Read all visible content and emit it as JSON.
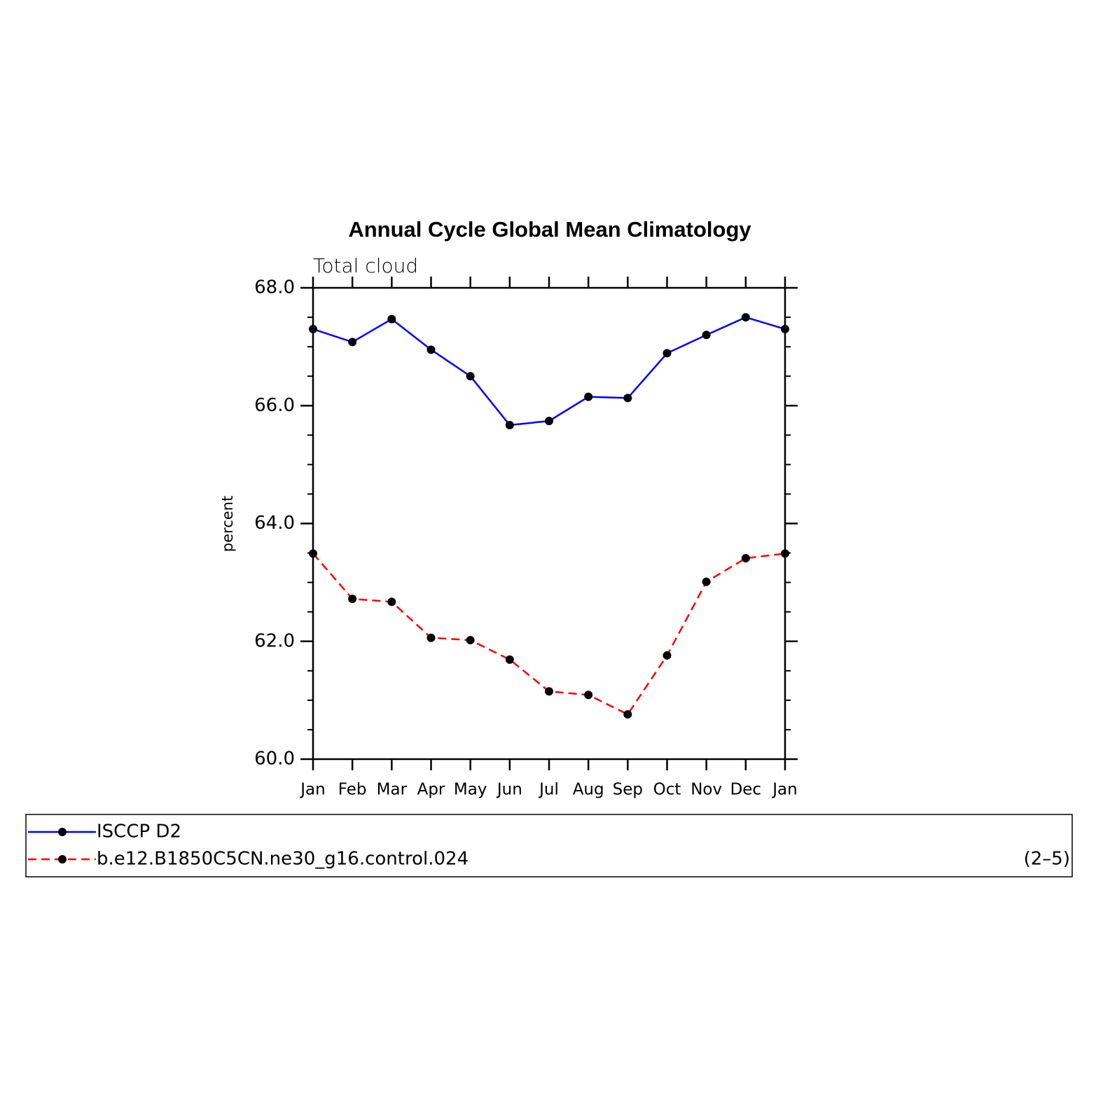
{
  "chart_data": {
    "type": "line",
    "title": "Annual Cycle Global Mean Climatology",
    "subtitle": "Total cloud",
    "y_label": "percent",
    "categories": [
      "Jan",
      "Feb",
      "Mar",
      "Apr",
      "May",
      "Jun",
      "Jul",
      "Aug",
      "Sep",
      "Oct",
      "Nov",
      "Dec",
      "Jan"
    ],
    "series": [
      {
        "name": "ISCCP D2",
        "color": "#0000ff",
        "dash": "solid",
        "values": [
          67.3,
          67.08,
          67.47,
          66.95,
          66.5,
          65.67,
          65.74,
          66.15,
          66.13,
          66.89,
          67.2,
          67.5,
          67.3
        ]
      },
      {
        "name": "b.e12.B1850C5CN.ne30_g16.control.024",
        "color": "#ff0000",
        "dash": "dashed",
        "values": [
          63.49,
          62.72,
          62.67,
          62.06,
          62.02,
          61.69,
          61.15,
          61.09,
          60.76,
          61.76,
          63.01,
          63.41,
          63.49
        ]
      }
    ],
    "ylim": [
      60,
      68
    ],
    "yticks": [
      {
        "value": 60,
        "label": "60.0"
      },
      {
        "value": 62,
        "label": "62.0"
      },
      {
        "value": 64,
        "label": "64.0"
      },
      {
        "value": 66,
        "label": "66.0"
      },
      {
        "value": 68,
        "label": "68.0"
      }
    ],
    "yticks_minor": [
      60.5,
      61,
      61.5,
      62.5,
      63,
      63.5,
      64.5,
      65,
      65.5,
      66.5,
      67,
      67.5
    ],
    "annotation": "(2–5)"
  }
}
